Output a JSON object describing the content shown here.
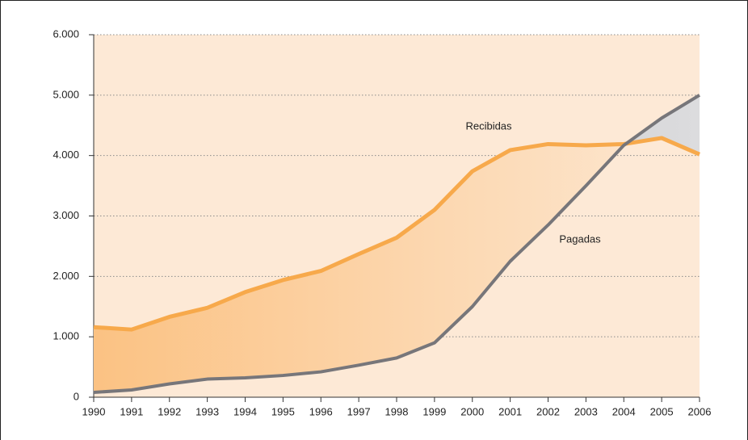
{
  "chart_data": {
    "type": "line",
    "x": [
      1990,
      1991,
      1992,
      1993,
      1994,
      1995,
      1996,
      1997,
      1998,
      1999,
      2000,
      2001,
      2002,
      2003,
      2004,
      2005,
      2006
    ],
    "series": [
      {
        "name": "Recibidas",
        "color": "#f7a94b",
        "values": [
          1160,
          1120,
          1330,
          1480,
          1740,
          1940,
          2090,
          2370,
          2640,
          3100,
          3740,
          4090,
          4190,
          4170,
          4190,
          4290,
          4020
        ]
      },
      {
        "name": "Pagadas",
        "color": "#77767a",
        "values": [
          80,
          120,
          220,
          300,
          320,
          360,
          420,
          530,
          650,
          900,
          1500,
          2250,
          2850,
          3500,
          4170,
          4620,
          5000
        ]
      }
    ],
    "xlim": [
      1990,
      2006
    ],
    "xticks": [
      1990,
      1991,
      1992,
      1993,
      1994,
      1995,
      1996,
      1997,
      1998,
      1999,
      2000,
      2001,
      2002,
      2003,
      2004,
      2005,
      2006
    ],
    "ylim": [
      0,
      6000
    ],
    "yticks": [
      0,
      {
        "value": 1000,
        "label": "1.000"
      },
      {
        "value": 2000,
        "label": "2.000"
      },
      {
        "value": 3000,
        "label": "3.000"
      },
      {
        "value": 4000,
        "label": "4.000"
      },
      {
        "value": 5000,
        "label": "5.000"
      },
      {
        "value": 6000,
        "label": "6.000"
      }
    ],
    "grid": true
  }
}
